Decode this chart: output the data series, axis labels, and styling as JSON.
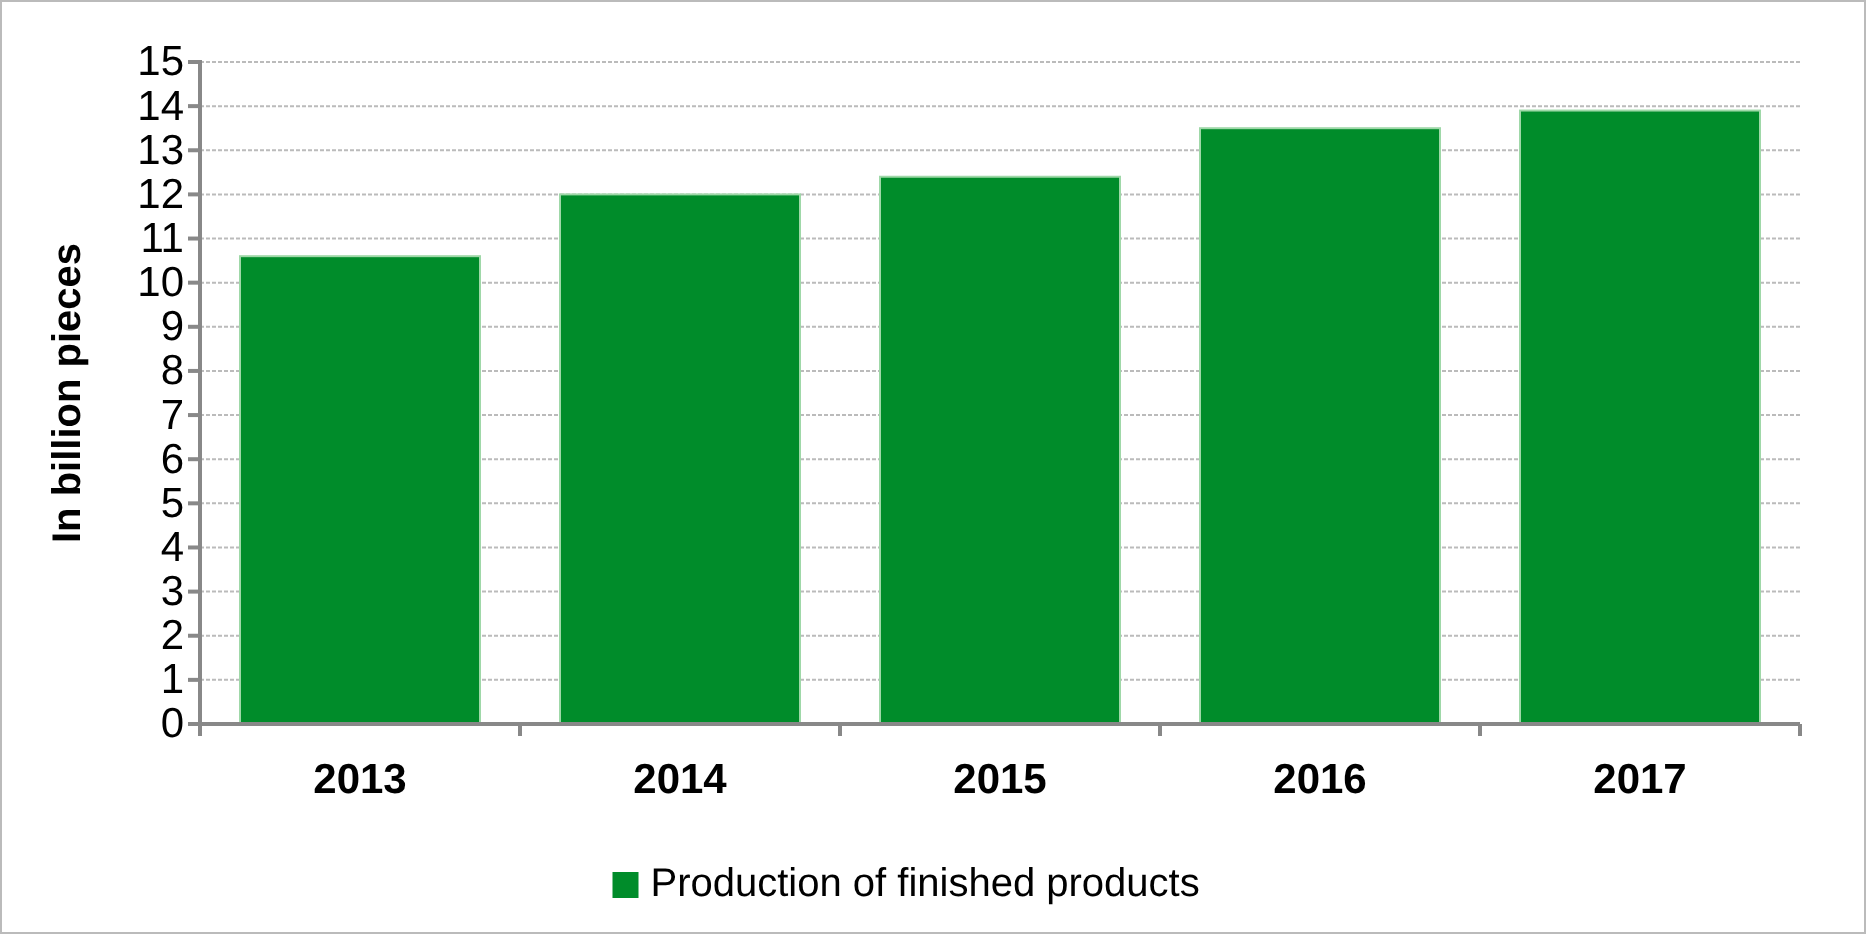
{
  "chart_data": {
    "type": "bar",
    "ylabel": "In billion pieces",
    "categories": [
      "2013",
      "2014",
      "2015",
      "2016",
      "2017"
    ],
    "series": [
      {
        "name": "Production of finished products",
        "color": "#008c2a",
        "values": [
          10.6,
          12.0,
          12.4,
          13.5,
          13.9
        ]
      }
    ],
    "ylim": [
      0,
      15
    ],
    "yticks": [
      0,
      1,
      2,
      3,
      4,
      5,
      6,
      7,
      8,
      9,
      10,
      11,
      12,
      13,
      14,
      15
    ],
    "grid": "y",
    "legend": "bottom"
  }
}
